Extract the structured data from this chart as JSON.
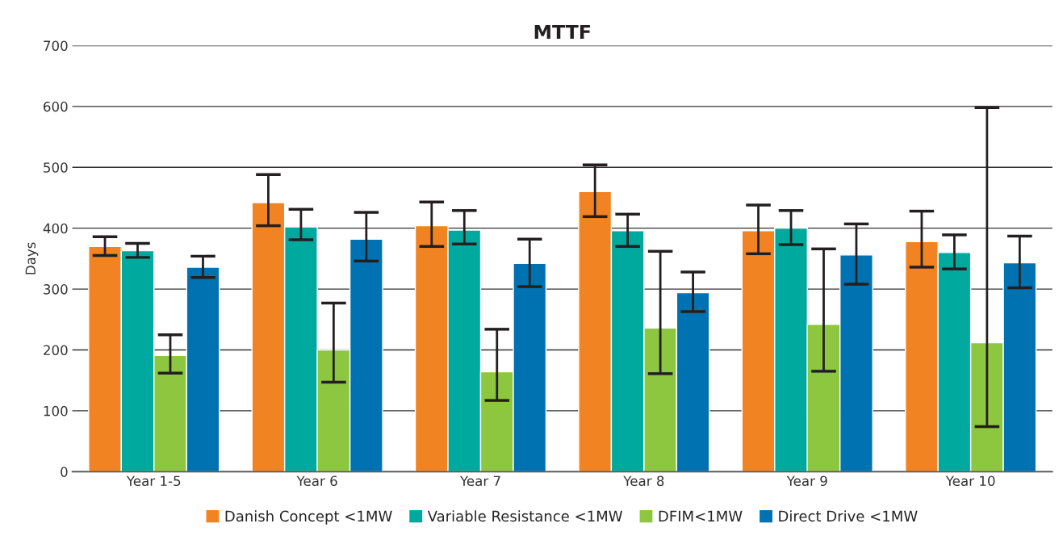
{
  "chart_data": {
    "type": "bar",
    "title": "MTTF",
    "ylabel": "Days",
    "categories": [
      "Year 1-5",
      "Year 6",
      "Year 7",
      "Year 8",
      "Year 9",
      "Year 10"
    ],
    "series": [
      {
        "name": "Danish Concept <1MW",
        "color": "#f28322",
        "values": [
          370,
          442,
          404,
          460,
          396,
          378
        ],
        "errors": [
          [
            355,
            386
          ],
          [
            404,
            488
          ],
          [
            370,
            443
          ],
          [
            419,
            504
          ],
          [
            358,
            438
          ],
          [
            336,
            428
          ]
        ]
      },
      {
        "name": "Variable Resistance <1MW",
        "color": "#00a99d",
        "values": [
          363,
          402,
          397,
          396,
          400,
          360
        ],
        "errors": [
          [
            352,
            375
          ],
          [
            381,
            431
          ],
          [
            374,
            429
          ],
          [
            370,
            423
          ],
          [
            373,
            429
          ],
          [
            333,
            389
          ]
        ]
      },
      {
        "name": "DFIM<1MW",
        "color": "#8dc63f",
        "values": [
          191,
          200,
          164,
          236,
          242,
          212
        ],
        "errors": [
          [
            162,
            225
          ],
          [
            147,
            277
          ],
          [
            117,
            234
          ],
          [
            161,
            362
          ],
          [
            165,
            366
          ],
          [
            74,
            598
          ]
        ]
      },
      {
        "name": "Direct Drive <1MW",
        "color": "#0072b2",
        "values": [
          336,
          382,
          342,
          294,
          356,
          343
        ],
        "errors": [
          [
            319,
            354
          ],
          [
            346,
            426
          ],
          [
            304,
            382
          ],
          [
            263,
            328
          ],
          [
            308,
            407
          ],
          [
            302,
            387
          ]
        ]
      }
    ],
    "ylim": [
      0,
      700
    ],
    "yticks": [
      0,
      100,
      200,
      300,
      400,
      500,
      600,
      700
    ],
    "grid": "y",
    "legend": "bottom"
  }
}
